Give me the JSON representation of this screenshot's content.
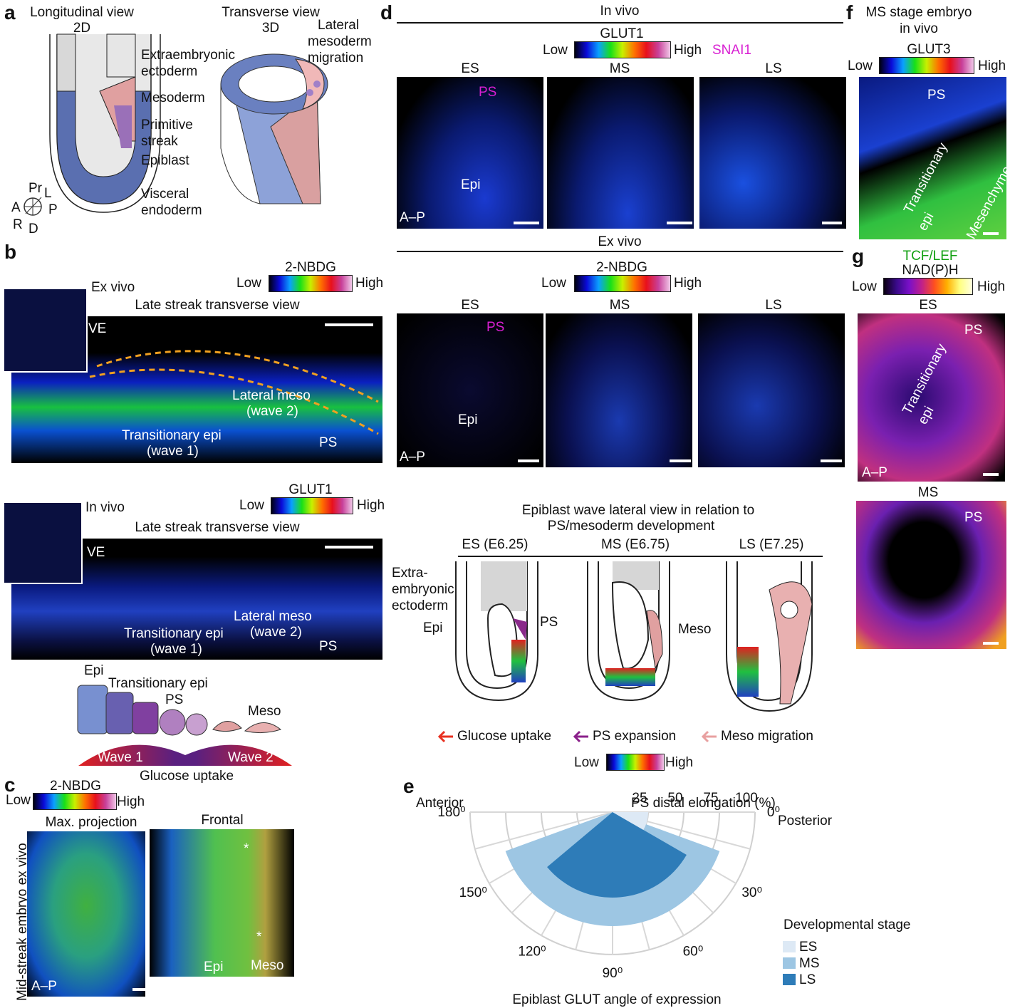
{
  "a": {
    "label": "a",
    "long_title_1": "Longitudinal view",
    "long_title_2": "2D",
    "trans_title_1": "Transverse view",
    "trans_title_2": "3D",
    "lateral_1": "Lateral",
    "lateral_2": "mesoderm",
    "lateral_3": "migration",
    "extra_1": "Extraembryonic",
    "extra_2": "ectoderm",
    "mesoderm": "Mesoderm",
    "prim_1": "Primitive",
    "prim_2": "streak",
    "epiblast": "Epiblast",
    "visc_1": "Visceral",
    "visc_2": "endoderm",
    "ax_pr": "Pr",
    "ax_l": "L",
    "ax_a": "A",
    "ax_p": "P",
    "ax_r": "R",
    "ax_d": "D"
  },
  "b": {
    "label": "b",
    "exvivo": "Ex vivo",
    "bar_title": "2-NBDG",
    "low": "Low",
    "high": "High",
    "title1": "Late streak transverse view",
    "ve": "VE",
    "lat_meso": "Lateral meso",
    "wave2": "(wave 2)",
    "trans_epi": "Transitionary epi",
    "wave1": "(wave 1)",
    "ps": "PS",
    "invivo": "In vivo",
    "bar2_title": "GLUT1",
    "title2": "Late streak transverse view",
    "schem_epi": "Epi",
    "schem_trans": "Transitionary epi",
    "schem_ps": "PS",
    "schem_meso": "Meso",
    "wave1_lbl": "Wave 1",
    "wave2_lbl": "Wave 2",
    "glucose": "Glucose uptake"
  },
  "c": {
    "label": "c",
    "bar_title": "2-NBDG",
    "low": "Low",
    "high": "High",
    "maxproj": "Max. projection",
    "frontal": "Frontal",
    "side": "Mid-streak embryo ex vivo",
    "ap": "A–P",
    "epi": "Epi",
    "meso": "Meso",
    "star": "*"
  },
  "d": {
    "label": "d",
    "invivo": "In vivo",
    "glut1": "GLUT1",
    "low": "Low",
    "high": "High",
    "snai1": "SNAI1",
    "es": "ES",
    "ms": "MS",
    "ls": "LS",
    "ps": "PS",
    "epi": "Epi",
    "ap": "A–P",
    "exvivo": "Ex vivo",
    "nbdg": "2-NBDG",
    "wave_title_1": "Epiblast wave lateral view in relation to",
    "wave_title_2": "PS/mesoderm development",
    "es_e": "ES (E6.25)",
    "ms_e": "MS (E6.75)",
    "ls_e": "LS (E7.25)",
    "extra_1": "Extra-",
    "extra_2": "embryonic",
    "extra_3": "ectoderm",
    "sch_epi": "Epi",
    "sch_ps": "PS",
    "sch_meso": "Meso",
    "leg_glucose": "Glucose uptake",
    "leg_ps": "PS expansion",
    "leg_meso": "Meso migration"
  },
  "e": {
    "label": "e",
    "anterior": "Anterior",
    "posterior": "Posterior",
    "r_title": "PS distal elongation (%)",
    "r_ticks": [
      "25",
      "50",
      "75",
      "100"
    ],
    "ang_ticks": [
      "180⁰",
      "150⁰",
      "120⁰",
      "90⁰",
      "60⁰",
      "30⁰",
      "0⁰"
    ],
    "xlabel": "Epiblast GLUT angle of expression",
    "legend_title": "Developmental stage",
    "colors": {
      "ES": "#dde9f5",
      "MS": "#9dc6e3",
      "LS": "#2e7cb8"
    }
  },
  "chart_data": {
    "type": "polar-bar",
    "r_label": "PS distal elongation (%)",
    "angle_label": "Epiblast GLUT angle of expression",
    "r_range": [
      0,
      100
    ],
    "angle_range": [
      0,
      180
    ],
    "series": [
      {
        "name": "ES",
        "r": 25,
        "theta_start": 0,
        "theta_end": 30
      },
      {
        "name": "MS",
        "r": 80,
        "theta_start": 20,
        "theta_end": 160
      },
      {
        "name": "LS",
        "r": 60,
        "theta_start": 30,
        "theta_end": 140
      }
    ]
  },
  "f": {
    "label": "f",
    "title_1": "MS stage embryo",
    "title_2": "in vivo",
    "bar_title": "GLUT3",
    "low": "Low",
    "high": "High",
    "ps": "PS",
    "trans": "Transitionary",
    "epi": "epi",
    "mesen": "Mesenchyme"
  },
  "g": {
    "label": "g",
    "tcf": "TCF/LEF",
    "nadph": "NAD(P)H",
    "low": "Low",
    "high": "High",
    "es": "ES",
    "ms": "MS",
    "ps": "PS",
    "trans": "Transitionary",
    "epi": "epi",
    "ap": "A–P"
  }
}
